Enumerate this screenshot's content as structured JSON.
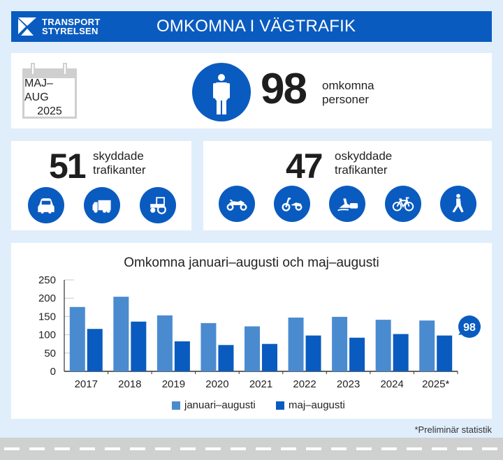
{
  "header": {
    "logo_line1": "TRANSPORT",
    "logo_line2": "STYRELSEN",
    "title": "OMKOMNA I VÄGTRAFIK"
  },
  "summary": {
    "period_line1": "MAJ–AUG",
    "period_line2": "2025",
    "total": "98",
    "total_label_line1": "omkomna",
    "total_label_line2": "personer",
    "icon": "person-icon"
  },
  "protected": {
    "count": "51",
    "label_line1": "skyddade",
    "label_line2": "trafikanter",
    "icons": [
      "car-icon",
      "truck-icon",
      "tractor-icon"
    ]
  },
  "unprotected": {
    "count": "47",
    "label_line1": "oskyddade",
    "label_line2": "trafikanter",
    "icons": [
      "motorcycle-icon",
      "moped-icon",
      "snowmobile-icon",
      "bicycle-icon",
      "pedestrian-icon"
    ]
  },
  "chart_data": {
    "type": "bar",
    "title": "Omkomna januari–augusti och maj–augusti",
    "categories": [
      "2017",
      "2018",
      "2019",
      "2020",
      "2021",
      "2022",
      "2023",
      "2024",
      "2025*"
    ],
    "series": [
      {
        "name": "januari–augusti",
        "color": "#4a8bd0",
        "values": [
          176,
          204,
          153,
          132,
          123,
          147,
          149,
          141,
          139
        ]
      },
      {
        "name": "maj–augusti",
        "color": "#0a5bbf",
        "values": [
          116,
          136,
          82,
          72,
          75,
          98,
          92,
          102,
          98
        ]
      }
    ],
    "yticks": [
      "0",
      "50",
      "100",
      "150",
      "200",
      "250"
    ],
    "ylim": [
      0,
      250
    ],
    "xlabel": "",
    "ylabel": "",
    "annotation": "98",
    "legend_position": "bottom"
  },
  "footnote": "*Preliminär statistik",
  "colors": {
    "brand_blue": "#0a5bbf",
    "light_blue": "#4a8bd0",
    "background": "#e0eefb"
  }
}
